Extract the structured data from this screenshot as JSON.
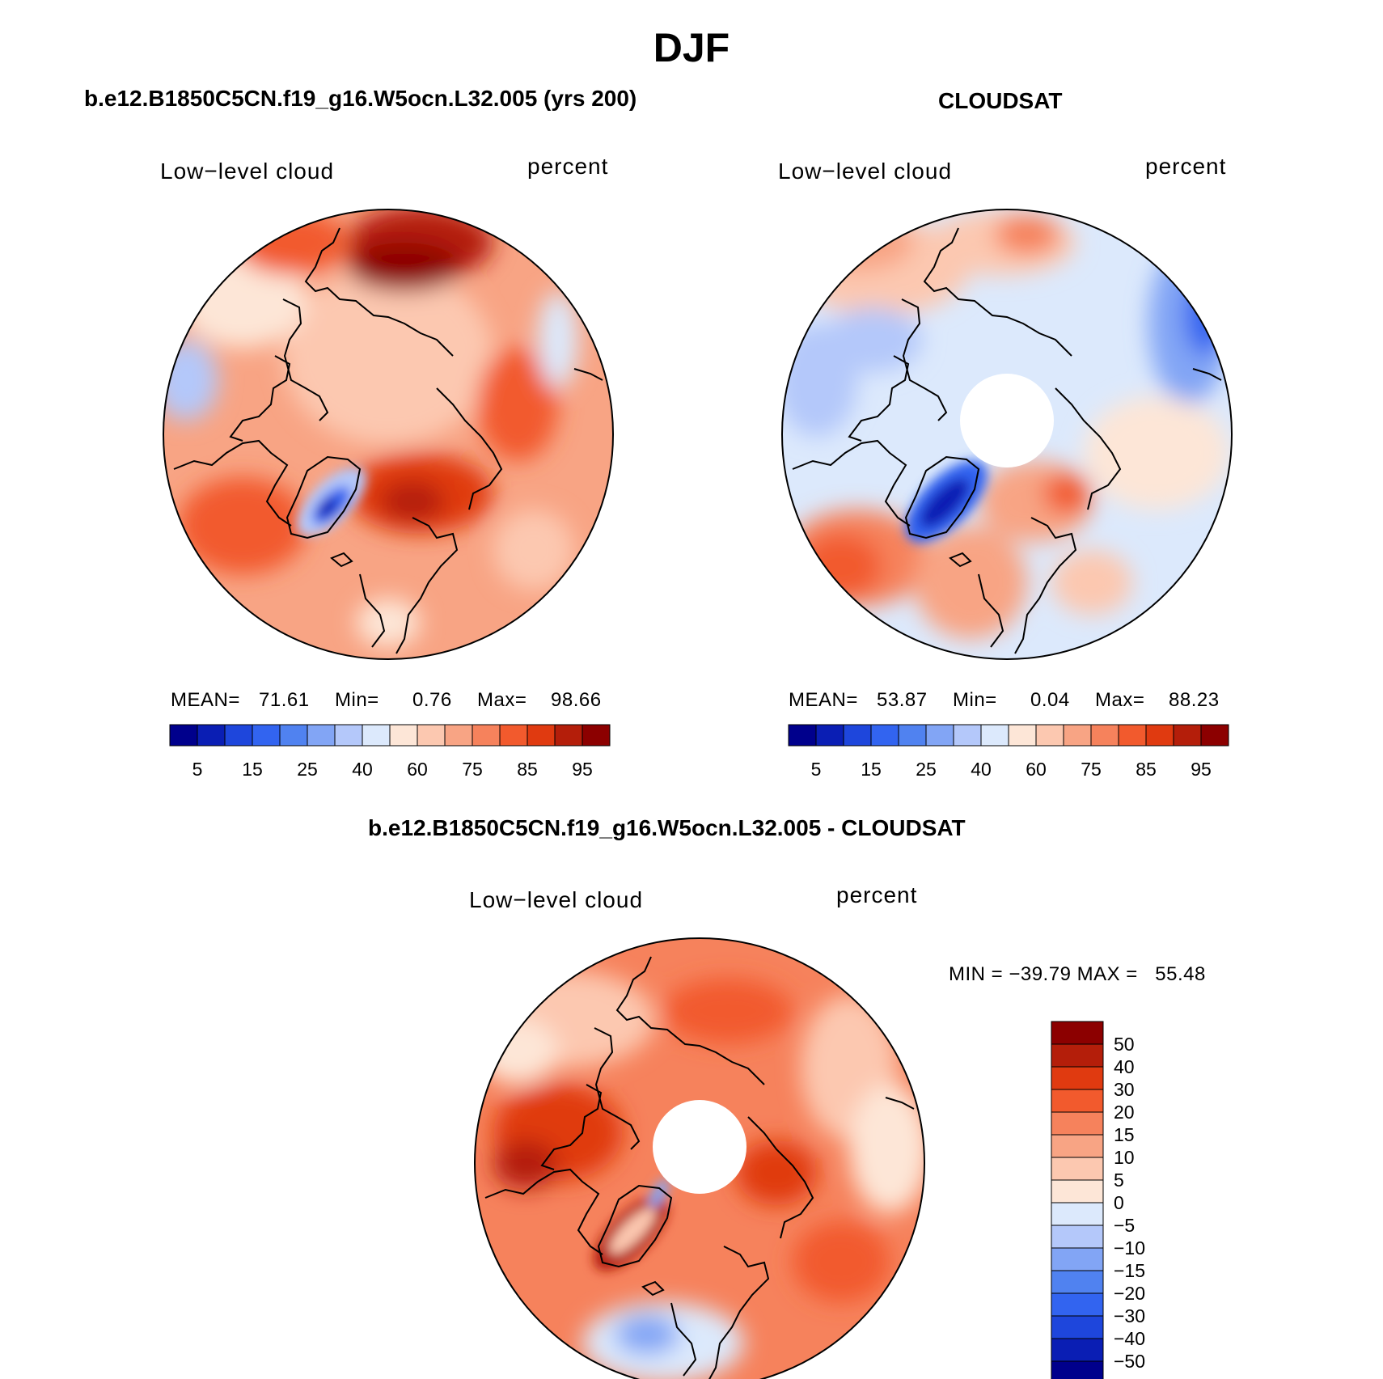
{
  "figure": {
    "title": "DJF"
  },
  "panels": [
    {
      "case_title": "b.e12.B1850C5CN.f19_g16.W5ocn.L32.005 (yrs 200)",
      "field": "Low−level cloud",
      "units": "percent",
      "mean_label": "MEAN=",
      "mean": "71.61",
      "min_label": "Min=",
      "min": "0.76",
      "max_label": "Max=",
      "max": "98.66"
    },
    {
      "case_title": "CLOUDSAT",
      "field": "Low−level cloud",
      "units": "percent",
      "mean_label": "MEAN=",
      "mean": "53.87",
      "min_label": "Min=",
      "min": "0.04",
      "max_label": "Max=",
      "max": "88.23"
    },
    {
      "case_title": "b.e12.B1850C5CN.f19_g16.W5ocn.L32.005 - CLOUDSAT",
      "field": "Low−level cloud",
      "units": "percent",
      "min_max": "MIN = −39.79 MAX =   55.48"
    }
  ],
  "colorbars": {
    "absolute": {
      "colors": [
        "#00008c",
        "#0a1eb4",
        "#1e46dc",
        "#3264f0",
        "#5082f0",
        "#82a5f5",
        "#b4c8fa",
        "#dce9fc",
        "#fde6d7",
        "#fcc8b0",
        "#f8a484",
        "#f6825c",
        "#f25a2d",
        "#e03a10",
        "#b41e0a",
        "#8c0000"
      ],
      "tick_labels": [
        "5",
        "15",
        "25",
        "40",
        "60",
        "75",
        "85",
        "95"
      ]
    },
    "difference": {
      "colors": [
        "#8c0000",
        "#b41e0a",
        "#e03a10",
        "#f25a2d",
        "#f6825c",
        "#f8a484",
        "#fcc8b0",
        "#fde6d7",
        "#dce9fc",
        "#b4c8fa",
        "#82a5f5",
        "#5082f0",
        "#3264f0",
        "#1e46dc",
        "#0a1eb4",
        "#00008c"
      ],
      "tick_labels": [
        "50",
        "40",
        "30",
        "20",
        "15",
        "10",
        "5",
        "0",
        "−5",
        "−10",
        "−15",
        "−20",
        "−30",
        "−40",
        "−50"
      ]
    }
  }
}
